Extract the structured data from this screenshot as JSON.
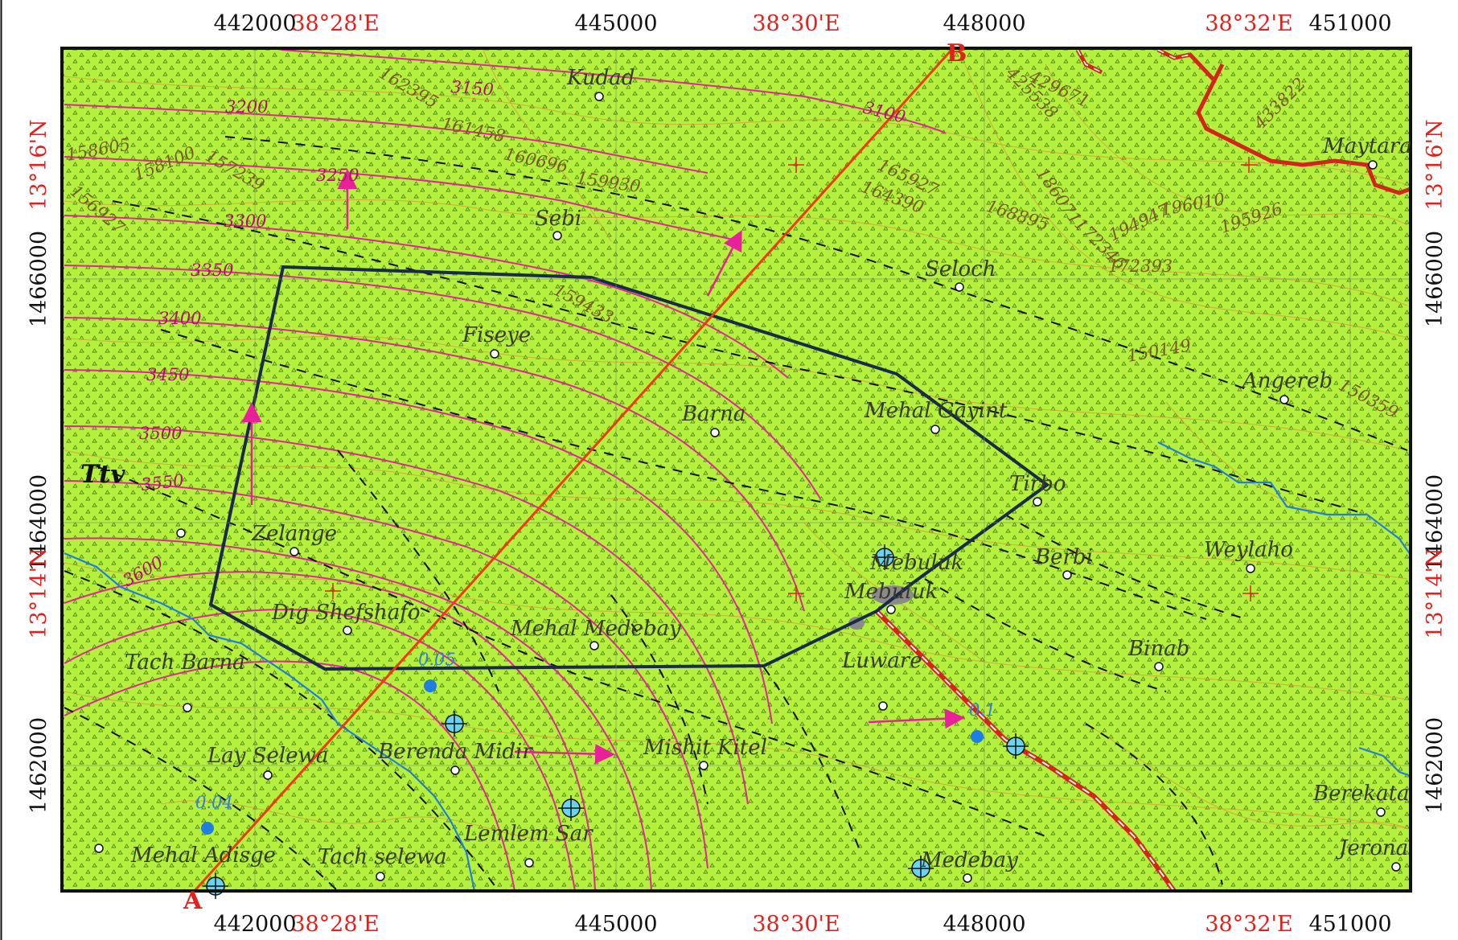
{
  "grid_top": [
    "442000",
    "445000",
    "448000",
    "451000"
  ],
  "grid_bottom": [
    "442000",
    "445000",
    "448000",
    "451000"
  ],
  "grid_left": [
    "1466000",
    "1464000",
    "1462000"
  ],
  "grid_right": [
    "1466000",
    "1464000",
    "1462000"
  ],
  "geo_top": [
    "38°28'E",
    "38°30'E",
    "38°32'E"
  ],
  "geo_bottom": [
    "38°28'E",
    "38°30'E",
    "38°32'E"
  ],
  "geo_left": [
    "13°16'N",
    "13°14'N"
  ],
  "geo_right": [
    "13°16'N",
    "13°14'N"
  ],
  "places": [
    "Kudad",
    "Maytara",
    "Sebi",
    "Seloch",
    "Fiseye",
    "Angereb",
    "Barna",
    "Mehal Gayint",
    "Tirbo",
    "Zelange",
    "Mebuluk",
    "Berbi",
    "Weylaho",
    "Mebuluk",
    "Dig Shefshafo",
    "Mehal Medebay",
    "Binab",
    "Tach Barna",
    "Luware",
    "Mishit Kitel",
    "Lay Selewa",
    "Berenda Midir",
    "Berekata",
    "Lemlem Sar",
    "Mehal Adisge",
    "Tach selewa",
    "Medebay",
    "Jerona"
  ],
  "contour_levels": [
    "3150",
    "3200",
    "3250",
    "3100",
    "3300",
    "3350",
    "3400",
    "3450",
    "3500",
    "3550",
    "3600"
  ],
  "flow_values": [
    "0.05",
    "0.1",
    "0.04"
  ],
  "data_values": [
    "162395",
    "161458",
    "160696",
    "159930",
    "158605",
    "158100",
    "157239",
    "156927",
    "425538",
    "429671",
    "433822",
    "165927",
    "164390",
    "186071",
    "168895",
    "172346",
    "194947",
    "196010",
    "195926",
    "172393",
    "159433",
    "150149",
    "150359"
  ],
  "geology_unit": "Ttv",
  "profile": {
    "start": "A",
    "end": "B"
  },
  "colors": {
    "land": "#b5f03c",
    "contour_minor": "#d99a3a",
    "contour_major": "#e0279a",
    "boundary": "#1a2a4a",
    "profile_line": "#f03a12",
    "river": "#1f7fe0",
    "road_outline": "#d4241e",
    "fault": "#111111",
    "arrow": "#e8219a"
  },
  "icons": [
    "spring-icon",
    "settlement-icon",
    "flow-arrow-icon",
    "grid-cross-icon",
    "quarry-icon"
  ]
}
